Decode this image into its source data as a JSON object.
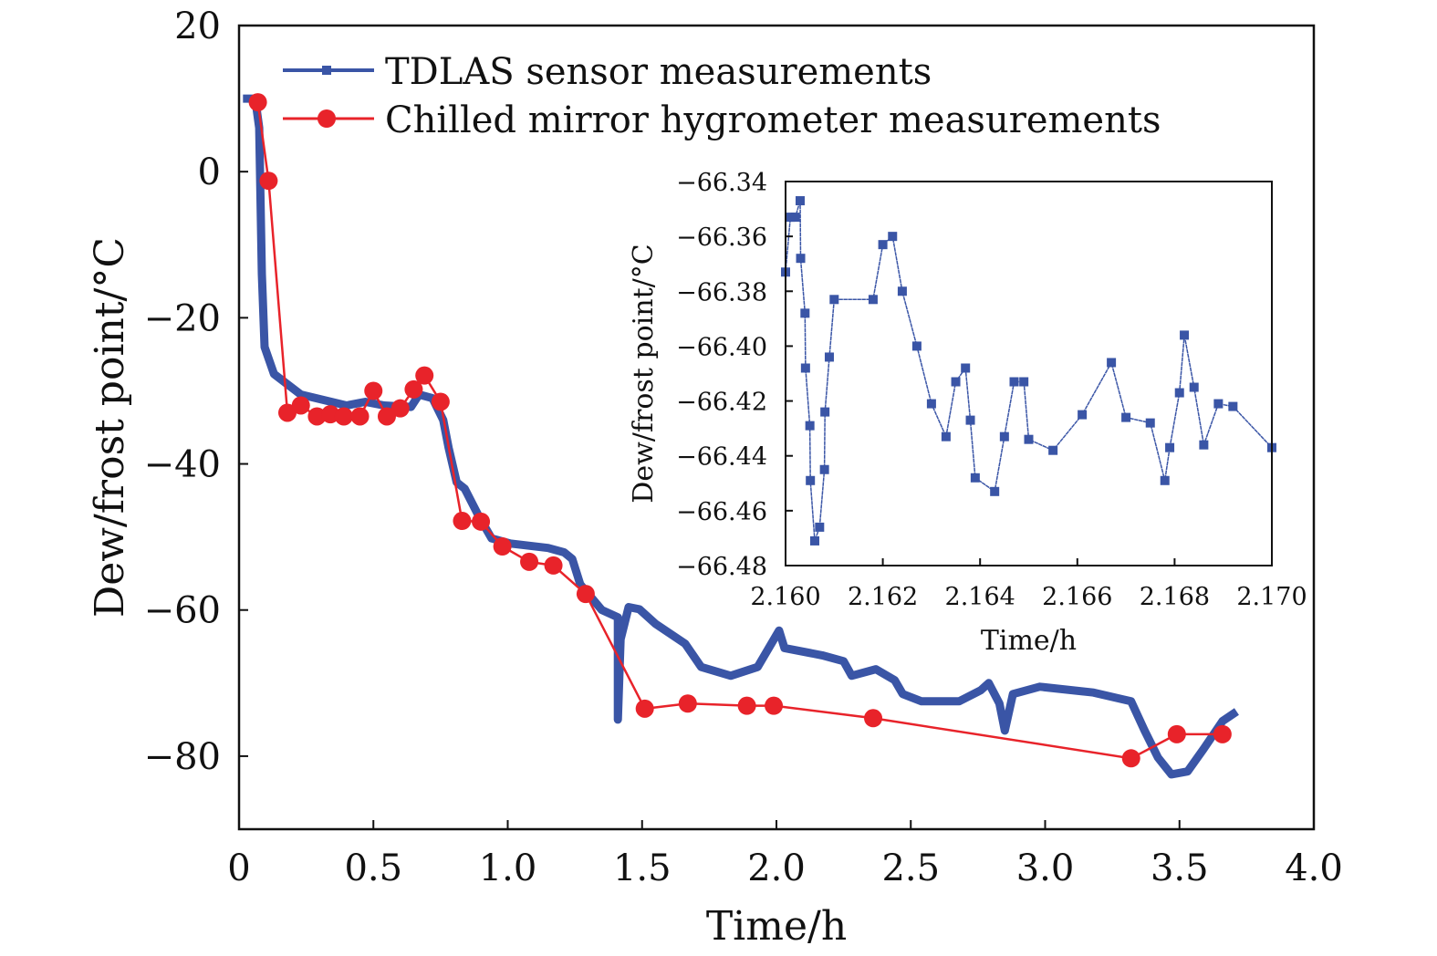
{
  "chart_data": [
    {
      "type": "line",
      "title": "",
      "xlabel": "Time/h",
      "ylabel": "Dew/frost point/°C",
      "xlim": [
        0,
        4.0
      ],
      "ylim": [
        -90,
        20
      ],
      "xticks": [
        0,
        0.5,
        1.0,
        1.5,
        2.0,
        2.5,
        3.0,
        3.5,
        4.0
      ],
      "xtick_labels": [
        "0",
        "0.5",
        "1.0",
        "1.5",
        "2.0",
        "2.5",
        "3.0",
        "3.5",
        "4.0"
      ],
      "yticks": [
        20,
        0,
        -20,
        -40,
        -60,
        -80
      ],
      "ytick_labels": [
        "20",
        "0",
        "−20",
        "−40",
        "−60",
        "−80"
      ],
      "grid": false,
      "legend_position": "top-left",
      "series": [
        {
          "name": "TDLAS sensor measurements",
          "color": "#3a55a6",
          "marker": "square",
          "x": [
            0.03,
            0.06,
            0.075,
            0.085,
            0.095,
            0.13,
            0.23,
            0.4,
            0.47,
            0.54,
            0.64,
            0.67,
            0.72,
            0.76,
            0.78,
            0.81,
            0.84,
            0.89,
            0.94,
            1.01,
            1.15,
            1.21,
            1.24,
            1.27,
            1.35,
            1.41,
            1.41,
            1.42,
            1.45,
            1.49,
            1.55,
            1.66,
            1.72,
            1.83,
            1.93,
            2.01,
            2.03,
            2.17,
            2.25,
            2.28,
            2.37,
            2.44,
            2.47,
            2.54,
            2.68,
            2.76,
            2.79,
            2.83,
            2.85,
            2.88,
            2.98,
            3.18,
            3.32,
            3.37,
            3.42,
            3.47,
            3.53,
            3.59,
            3.66,
            3.7
          ],
          "y": [
            10,
            10,
            6,
            -14,
            -24,
            -27.7,
            -30.5,
            -32,
            -31.5,
            -32,
            -32.2,
            -30.5,
            -31,
            -34,
            -37.8,
            -42.5,
            -43.4,
            -47,
            -50.2,
            -50.9,
            -51.5,
            -52.1,
            -53,
            -56.5,
            -60,
            -61,
            -75,
            -64,
            -59.6,
            -59.9,
            -61.9,
            -64.6,
            -67.8,
            -69,
            -67.8,
            -62.8,
            -65.2,
            -66.2,
            -67,
            -69,
            -68.1,
            -69.6,
            -71.5,
            -72.5,
            -72.5,
            -71,
            -70,
            -72.8,
            -76.5,
            -71.5,
            -70.5,
            -71.3,
            -72.5,
            -76.5,
            -80.2,
            -82.5,
            -82.1,
            -79,
            -75.2,
            -74.2
          ]
        },
        {
          "name": "Chilled mirror hygrometer measurements",
          "color": "#e8232a",
          "marker": "circle",
          "x": [
            0.07,
            0.11,
            0.18,
            0.23,
            0.29,
            0.34,
            0.39,
            0.45,
            0.5,
            0.55,
            0.6,
            0.65,
            0.69,
            0.75,
            0.83,
            0.9,
            0.98,
            1.08,
            1.17,
            1.29,
            1.51,
            1.67,
            1.89,
            1.99,
            2.36,
            3.32,
            3.49,
            3.66
          ],
          "y": [
            9.5,
            -1.25,
            -33,
            -32,
            -33.5,
            -33.2,
            -33.5,
            -33.5,
            -30,
            -33.5,
            -32.4,
            -29.8,
            -27.9,
            -31.5,
            -47.8,
            -47.9,
            -51.3,
            -53.4,
            -53.9,
            -57.8,
            -73.5,
            -72.8,
            -73.1,
            -73.1,
            -74.8,
            -80.3,
            -77,
            -77
          ]
        }
      ]
    },
    {
      "type": "line",
      "title": "",
      "xlabel": "Time/h",
      "ylabel": "Dew/frost point/°C",
      "xlim": [
        2.16,
        2.17
      ],
      "ylim": [
        -66.48,
        -66.34
      ],
      "xticks": [
        2.16,
        2.162,
        2.164,
        2.166,
        2.168,
        2.17
      ],
      "xtick_labels": [
        "2.160",
        "2.162",
        "2.164",
        "2.166",
        "2.168",
        "2.170"
      ],
      "yticks": [
        -66.34,
        -66.36,
        -66.38,
        -66.4,
        -66.42,
        -66.44,
        -66.46,
        -66.48
      ],
      "ytick_labels": [
        "−66.34",
        "−66.36",
        "−66.38",
        "−66.40",
        "−66.42",
        "−66.44",
        "−66.46",
        "−66.48"
      ],
      "grid": false,
      "series": [
        {
          "name": "TDLAS sensor measurements (inset)",
          "color": "#3a55a6",
          "marker": "square",
          "x": [
            2.16,
            2.1601,
            2.1602,
            2.1603,
            2.16031,
            2.1604,
            2.16041,
            2.1605,
            2.16051,
            2.1606,
            2.1607,
            2.1608,
            2.16081,
            2.1609,
            2.161,
            2.1618,
            2.162,
            2.1622,
            2.1624,
            2.1627,
            2.163,
            2.1633,
            2.1635,
            2.1637,
            2.1638,
            2.1639,
            2.1643,
            2.1645,
            2.1647,
            2.1649,
            2.165,
            2.1655,
            2.1661,
            2.1667,
            2.167,
            2.1675,
            2.1678,
            2.1679,
            2.1681,
            2.1682,
            2.1684,
            2.1686,
            2.1689,
            2.1692,
            2.17
          ],
          "y": [
            -66.373,
            -66.353,
            -66.353,
            -66.347,
            -66.368,
            -66.388,
            -66.408,
            -66.429,
            -66.449,
            -66.471,
            -66.466,
            -66.445,
            -66.424,
            -66.404,
            -66.383,
            -66.383,
            -66.363,
            -66.36,
            -66.38,
            -66.4,
            -66.421,
            -66.433,
            -66.413,
            -66.408,
            -66.427,
            -66.448,
            -66.453,
            -66.433,
            -66.413,
            -66.413,
            -66.434,
            -66.438,
            -66.425,
            -66.406,
            -66.426,
            -66.428,
            -66.449,
            -66.437,
            -66.417,
            -66.396,
            -66.415,
            -66.436,
            -66.421,
            -66.422,
            -66.437
          ]
        }
      ]
    }
  ]
}
